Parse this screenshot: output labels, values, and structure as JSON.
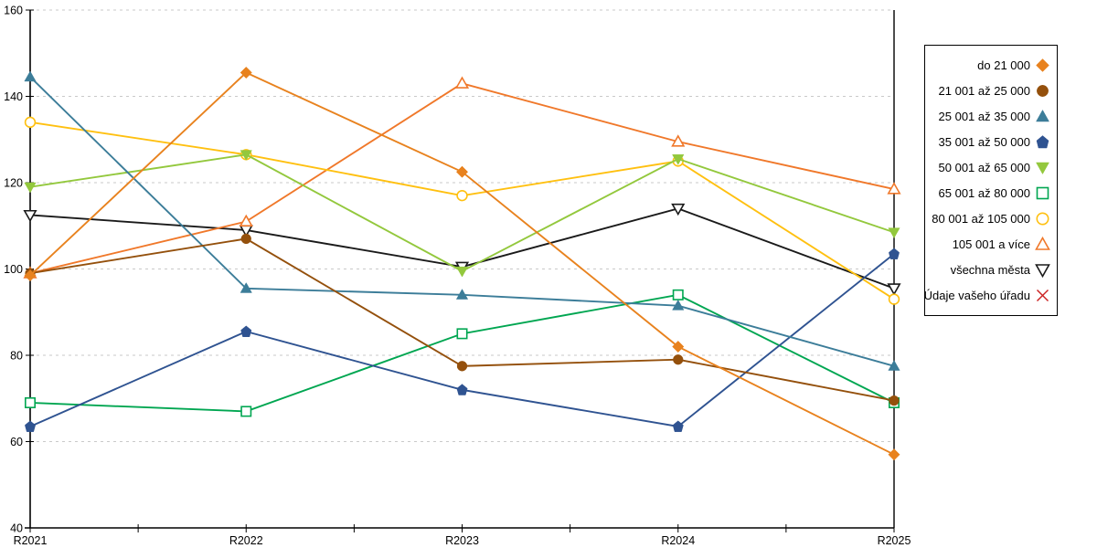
{
  "chart_data": {
    "type": "line",
    "title": "",
    "xlabel": "",
    "ylabel": "",
    "x": [
      "R2021",
      "R2022",
      "R2023",
      "R2024",
      "R2025"
    ],
    "ylim": [
      40,
      160
    ],
    "yticks": [
      40,
      60,
      80,
      100,
      120,
      140,
      160
    ],
    "x_minor_ticks_between_labels": 1,
    "grid": "horizontal-dashed",
    "grid_color": "#c9c9c9",
    "axis_color": "#000000",
    "legend_position": "right",
    "series": [
      {
        "name": "do 21 000",
        "color": "#e8821e",
        "marker": "diamond",
        "filled": true,
        "values": [
          98.5,
          145.5,
          122.5,
          82,
          57
        ]
      },
      {
        "name": "21 001 až 25 000",
        "color": "#94500c",
        "marker": "circle",
        "filled": true,
        "values": [
          99,
          107,
          77.5,
          79,
          69.5
        ]
      },
      {
        "name": "25 001 až 35 000",
        "color": "#3c7d99",
        "marker": "triangle-up",
        "filled": true,
        "values": [
          144.5,
          95.5,
          94,
          91.5,
          77.5
        ]
      },
      {
        "name": "35 001 až 50 000",
        "color": "#2f5391",
        "marker": "pentagon",
        "filled": true,
        "values": [
          63.5,
          85.5,
          72,
          63.5,
          103.5
        ]
      },
      {
        "name": "50 001 až 65 000",
        "color": "#93c83d",
        "marker": "triangle-down",
        "filled": true,
        "values": [
          119,
          126.5,
          99.5,
          125.5,
          108.5
        ]
      },
      {
        "name": "65 001 až 80 000",
        "color": "#00a651",
        "marker": "square",
        "filled": false,
        "values": [
          69,
          67,
          85,
          94,
          69
        ]
      },
      {
        "name": "80 001 až 105 000",
        "color": "#ffc010",
        "marker": "circle",
        "filled": false,
        "values": [
          134,
          126.5,
          117,
          125,
          93
        ]
      },
      {
        "name": "105 001 a více",
        "color": "#f0782a",
        "marker": "triangle-up",
        "filled": false,
        "values": [
          99,
          111,
          143,
          129.5,
          118.5
        ]
      },
      {
        "name": "všechna města",
        "color": "#1a1a1a",
        "marker": "triangle-down",
        "filled": false,
        "values": [
          112.5,
          109,
          100.5,
          114,
          95.5
        ]
      },
      {
        "name": "Údaje vašeho úřadu",
        "color": "#cc2222",
        "marker": "x",
        "filled": false,
        "values": [
          null,
          null,
          null,
          null,
          null
        ]
      }
    ]
  }
}
